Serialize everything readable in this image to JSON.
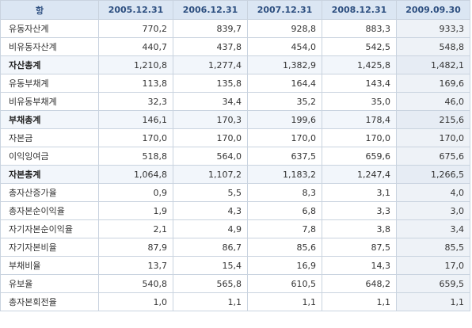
{
  "table": {
    "headers": [
      "항   목",
      "2005.12.31",
      "2006.12.31",
      "2007.12.31",
      "2008.12.31",
      "2009.09.30"
    ],
    "rows": [
      {
        "label": "유동자산계",
        "total": false,
        "values": [
          "770,2",
          "839,7",
          "928,8",
          "883,3",
          "933,3"
        ]
      },
      {
        "label": "비유동자산계",
        "total": false,
        "values": [
          "440,7",
          "437,8",
          "454,0",
          "542,5",
          "548,8"
        ]
      },
      {
        "label": "자산총계",
        "total": true,
        "values": [
          "1,210,8",
          "1,277,4",
          "1,382,9",
          "1,425,8",
          "1,482,1"
        ]
      },
      {
        "label": "유동부채계",
        "total": false,
        "values": [
          "113,8",
          "135,8",
          "164,4",
          "143,4",
          "169,6"
        ]
      },
      {
        "label": "비유동부채계",
        "total": false,
        "values": [
          "32,3",
          "34,4",
          "35,2",
          "35,0",
          "46,0"
        ]
      },
      {
        "label": "부채총계",
        "total": true,
        "values": [
          "146,1",
          "170,3",
          "199,6",
          "178,4",
          "215,6"
        ]
      },
      {
        "label": "자본금",
        "total": false,
        "values": [
          "170,0",
          "170,0",
          "170,0",
          "170,0",
          "170,0"
        ]
      },
      {
        "label": "이익잉여금",
        "total": false,
        "values": [
          "518,8",
          "564,0",
          "637,5",
          "659,6",
          "675,6"
        ]
      },
      {
        "label": "자본총계",
        "total": true,
        "values": [
          "1,064,8",
          "1,107,2",
          "1,183,2",
          "1,247,4",
          "1,266,5"
        ]
      },
      {
        "label": "총자산증가율",
        "total": false,
        "values": [
          "0,9",
          "5,5",
          "8,3",
          "3,1",
          "4,0"
        ]
      },
      {
        "label": "총자본순이익율",
        "total": false,
        "values": [
          "1,9",
          "4,3",
          "6,8",
          "3,3",
          "3,0"
        ]
      },
      {
        "label": "자기자본순이익율",
        "total": false,
        "values": [
          "2,1",
          "4,9",
          "7,8",
          "3,8",
          "3,4"
        ]
      },
      {
        "label": "자기자본비율",
        "total": false,
        "values": [
          "87,9",
          "86,7",
          "85,6",
          "87,5",
          "85,5"
        ]
      },
      {
        "label": "부채비율",
        "total": false,
        "values": [
          "13,7",
          "15,4",
          "16,9",
          "14,3",
          "17,0"
        ]
      },
      {
        "label": "유보율",
        "total": false,
        "values": [
          "540,8",
          "565,8",
          "610,5",
          "648,2",
          "659,5"
        ]
      },
      {
        "label": "총자본회전율",
        "total": false,
        "values": [
          "1,0",
          "1,1",
          "1,1",
          "1,1",
          "1,1"
        ]
      }
    ]
  }
}
